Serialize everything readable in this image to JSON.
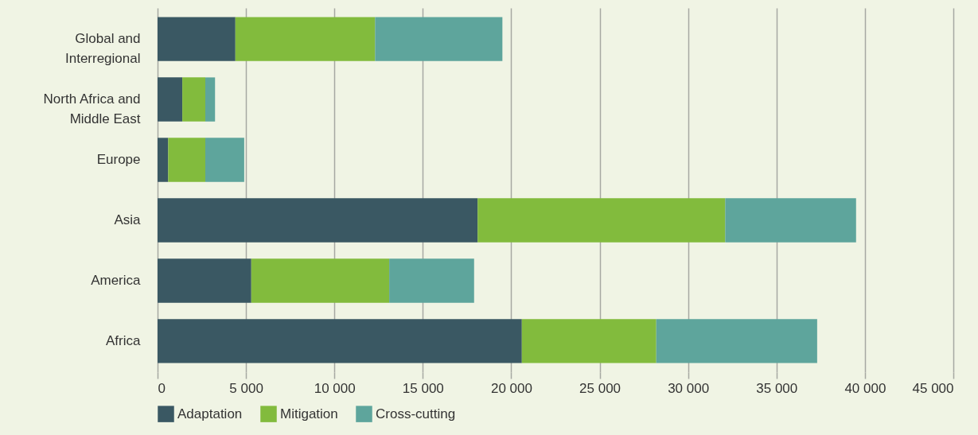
{
  "chart_data": {
    "type": "bar",
    "orientation": "horizontal",
    "stacked": true,
    "categories": [
      "Global and Interregional",
      "North Africa and Middle East",
      "Europe",
      "Asia",
      "America",
      "Africa"
    ],
    "series": [
      {
        "name": "Adaptation",
        "color": "#3a5863",
        "values": [
          4400,
          1400,
          600,
          18100,
          5300,
          20600
        ]
      },
      {
        "name": "Mitigation",
        "color": "#82bb3d",
        "values": [
          7900,
          1300,
          2100,
          14000,
          7800,
          7600
        ]
      },
      {
        "name": "Cross-cutting",
        "color": "#5ea59c",
        "values": [
          7200,
          550,
          2200,
          7400,
          4800,
          9100
        ]
      }
    ],
    "xlim": [
      0,
      45000
    ],
    "xticks": [
      0,
      {
        "value": 5000,
        "label": "5 000"
      },
      {
        "value": 10000,
        "label": "10 000"
      },
      {
        "value": 15000,
        "label": "15 000"
      },
      {
        "value": 20000,
        "label": "20 000"
      },
      {
        "value": 25000,
        "label": "25 000"
      },
      {
        "value": 30000,
        "label": "30 000"
      },
      {
        "value": 35000,
        "label": "35 000"
      },
      {
        "value": 40000,
        "label": "40 000"
      },
      {
        "value": 45000,
        "label": "45 000"
      }
    ],
    "grid": "x",
    "legend": "bottom"
  }
}
